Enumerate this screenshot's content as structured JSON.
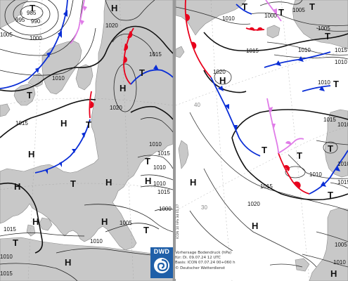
{
  "left_map": {
    "isobars": [
      "985",
      "990",
      "995",
      "1000",
      "1005",
      "1010",
      "1015",
      "1020",
      "1015",
      "1010",
      "1015",
      "1020",
      "1015",
      "1010",
      "1005",
      "1010",
      "1010",
      "1015",
      "1010",
      "1015",
      "1000"
    ],
    "pressure_centers": [
      "T",
      "H",
      "T",
      "T",
      "H",
      "H",
      "T",
      "H",
      "H",
      "T",
      "H",
      "T",
      "H",
      "T",
      "H",
      "H",
      "T",
      "H"
    ]
  },
  "right_map": {
    "isobars": [
      "1005",
      "1010",
      "1000",
      "1005",
      "1015",
      "1010",
      "1020",
      "1015",
      "1010",
      "1015",
      "1020",
      "1010",
      "1005",
      "1010",
      "1015",
      "1015",
      "1010",
      "1010",
      "1010",
      "40",
      "30"
    ],
    "pressure_centers": [
      "T",
      "T",
      "T",
      "H",
      "T",
      "T",
      "H",
      "T",
      "T",
      "T",
      "T",
      "H",
      "H"
    ]
  },
  "logo": {
    "text": "DWD",
    "icon": "swirl-icon"
  },
  "credit": {
    "line1": "Vorhersage Bodendruck (hPa)",
    "line2": "für: Di. 09.07.24 12 UTC",
    "line3": "Basis: ICON 07.07.24 00+060 h",
    "line4": "© Deutscher Wetterdienst"
  },
  "side_caption": "ICON 10 hPa 3d 01.07"
}
